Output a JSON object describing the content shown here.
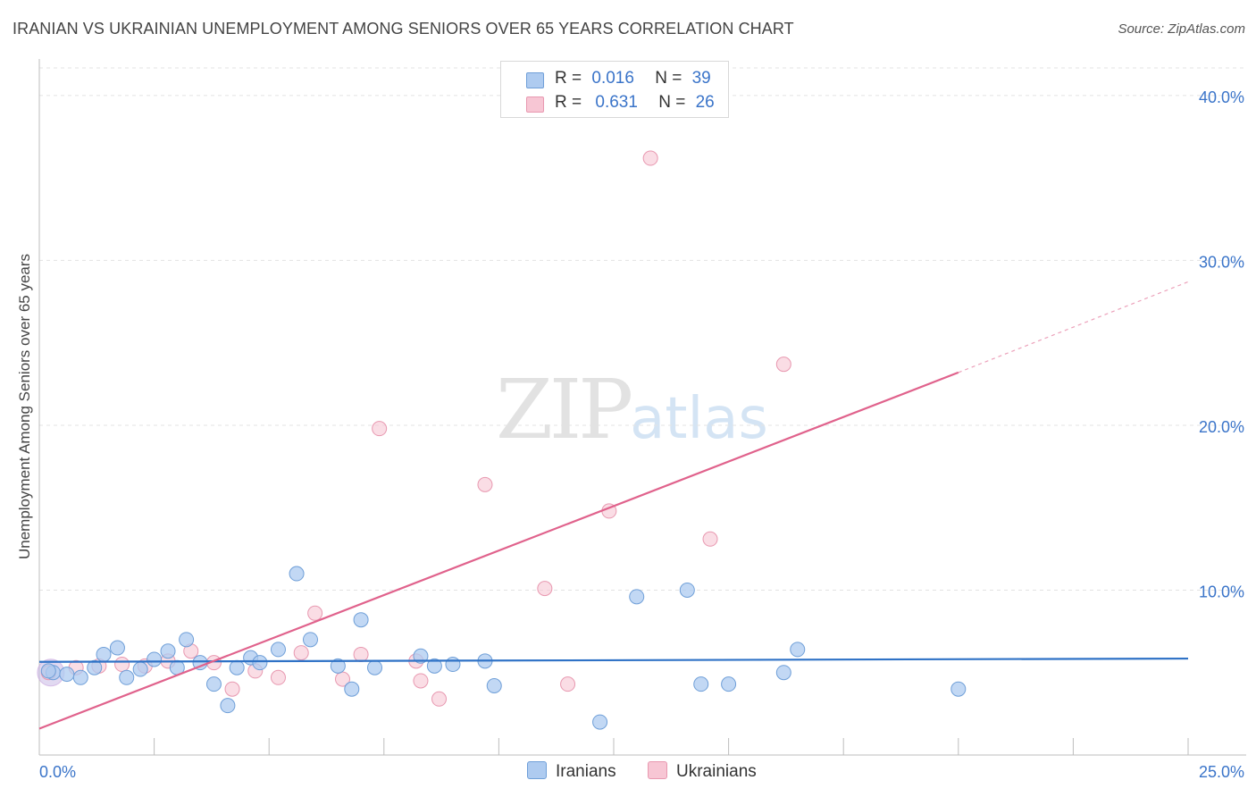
{
  "title": "IRANIAN VS UKRAINIAN UNEMPLOYMENT AMONG SENIORS OVER 65 YEARS CORRELATION CHART",
  "source": "Source: ZipAtlas.com",
  "watermark": {
    "zip": "ZIP",
    "atlas": "atlas"
  },
  "legend": {
    "r_label": "R =",
    "n_label": "N =",
    "rows": [
      {
        "r": "0.016",
        "n": "39",
        "color": "#aecbf0"
      },
      {
        "r": "0.631",
        "n": "26",
        "color": "#f7bfcf"
      }
    ]
  },
  "colors": {
    "iranians_fill": "#aecbf0",
    "iranians_stroke": "#6f9fd8",
    "iranians_line": "#2f72c6",
    "ukrainians_fill": "#f7c6d4",
    "ukrainians_stroke": "#e898b0",
    "ukrainians_line": "#e0628c",
    "axis_label": "#3a74c9",
    "grid": "#e3e3e3"
  },
  "chart_data": {
    "type": "scatter",
    "title": "IRANIAN VS UKRAINIAN UNEMPLOYMENT AMONG SENIORS OVER 65 YEARS CORRELATION CHART",
    "xlabel": "",
    "ylabel": "Unemployment Among Seniors over 65 years",
    "xlim": [
      0,
      25
    ],
    "ylim": [
      0,
      42
    ],
    "x_tick_labels": [
      "0.0%",
      "25.0%"
    ],
    "y_ticks": [
      10,
      20,
      30,
      40
    ],
    "y_tick_labels": [
      "10.0%",
      "20.0%",
      "30.0%",
      "40.0%"
    ],
    "grid": true,
    "legend_placement": "bottom-center",
    "series": [
      {
        "name": "Iranians",
        "r": 0.016,
        "n": 39,
        "points": [
          [
            0.3,
            5.0
          ],
          [
            0.6,
            4.9
          ],
          [
            0.9,
            4.7
          ],
          [
            1.2,
            5.3
          ],
          [
            1.4,
            6.1
          ],
          [
            1.7,
            6.5
          ],
          [
            1.9,
            4.7
          ],
          [
            2.2,
            5.2
          ],
          [
            2.5,
            5.8
          ],
          [
            2.8,
            6.3
          ],
          [
            3.0,
            5.3
          ],
          [
            3.2,
            7.0
          ],
          [
            3.5,
            5.6
          ],
          [
            3.8,
            4.3
          ],
          [
            4.1,
            3.0
          ],
          [
            4.3,
            5.3
          ],
          [
            4.6,
            5.9
          ],
          [
            4.8,
            5.6
          ],
          [
            5.2,
            6.4
          ],
          [
            5.6,
            11.0
          ],
          [
            5.9,
            7.0
          ],
          [
            6.5,
            5.4
          ],
          [
            6.8,
            4.0
          ],
          [
            7.0,
            8.2
          ],
          [
            7.3,
            5.3
          ],
          [
            8.3,
            6.0
          ],
          [
            8.6,
            5.4
          ],
          [
            9.0,
            5.5
          ],
          [
            9.7,
            5.7
          ],
          [
            9.9,
            4.2
          ],
          [
            12.2,
            2.0
          ],
          [
            13.0,
            9.6
          ],
          [
            14.1,
            10.0
          ],
          [
            14.4,
            4.3
          ],
          [
            15.0,
            4.3
          ],
          [
            16.2,
            5.0
          ],
          [
            16.5,
            6.4
          ],
          [
            20.0,
            4.0
          ],
          [
            0.2,
            5.1
          ]
        ],
        "trend": {
          "x": [
            0,
            25
          ],
          "y": [
            5.65,
            5.85
          ]
        }
      },
      {
        "name": "Ukrainians",
        "r": 0.631,
        "n": 26,
        "points": [
          [
            0.2,
            5.0
          ],
          [
            0.8,
            5.3
          ],
          [
            1.3,
            5.4
          ],
          [
            1.8,
            5.5
          ],
          [
            2.3,
            5.4
          ],
          [
            2.8,
            5.7
          ],
          [
            3.3,
            6.3
          ],
          [
            3.8,
            5.6
          ],
          [
            4.2,
            4.0
          ],
          [
            4.7,
            5.1
          ],
          [
            5.2,
            4.7
          ],
          [
            5.7,
            6.2
          ],
          [
            6.0,
            8.6
          ],
          [
            6.6,
            4.6
          ],
          [
            7.0,
            6.1
          ],
          [
            7.4,
            19.8
          ],
          [
            8.2,
            5.7
          ],
          [
            8.3,
            4.5
          ],
          [
            8.7,
            3.4
          ],
          [
            9.7,
            16.4
          ],
          [
            11.0,
            10.1
          ],
          [
            11.5,
            4.3
          ],
          [
            12.4,
            14.8
          ],
          [
            13.3,
            36.2
          ],
          [
            14.6,
            13.1
          ],
          [
            16.2,
            23.7
          ]
        ],
        "trend": {
          "x": [
            0,
            20
          ],
          "y": [
            1.6,
            23.2
          ]
        },
        "trend_extension": {
          "x": [
            20,
            25
          ],
          "y": [
            23.2,
            28.7
          ]
        }
      }
    ]
  },
  "bottom_legend": [
    {
      "label": "Iranians",
      "color": "#aecbf0"
    },
    {
      "label": "Ukrainians",
      "color": "#f7c6d4"
    }
  ]
}
